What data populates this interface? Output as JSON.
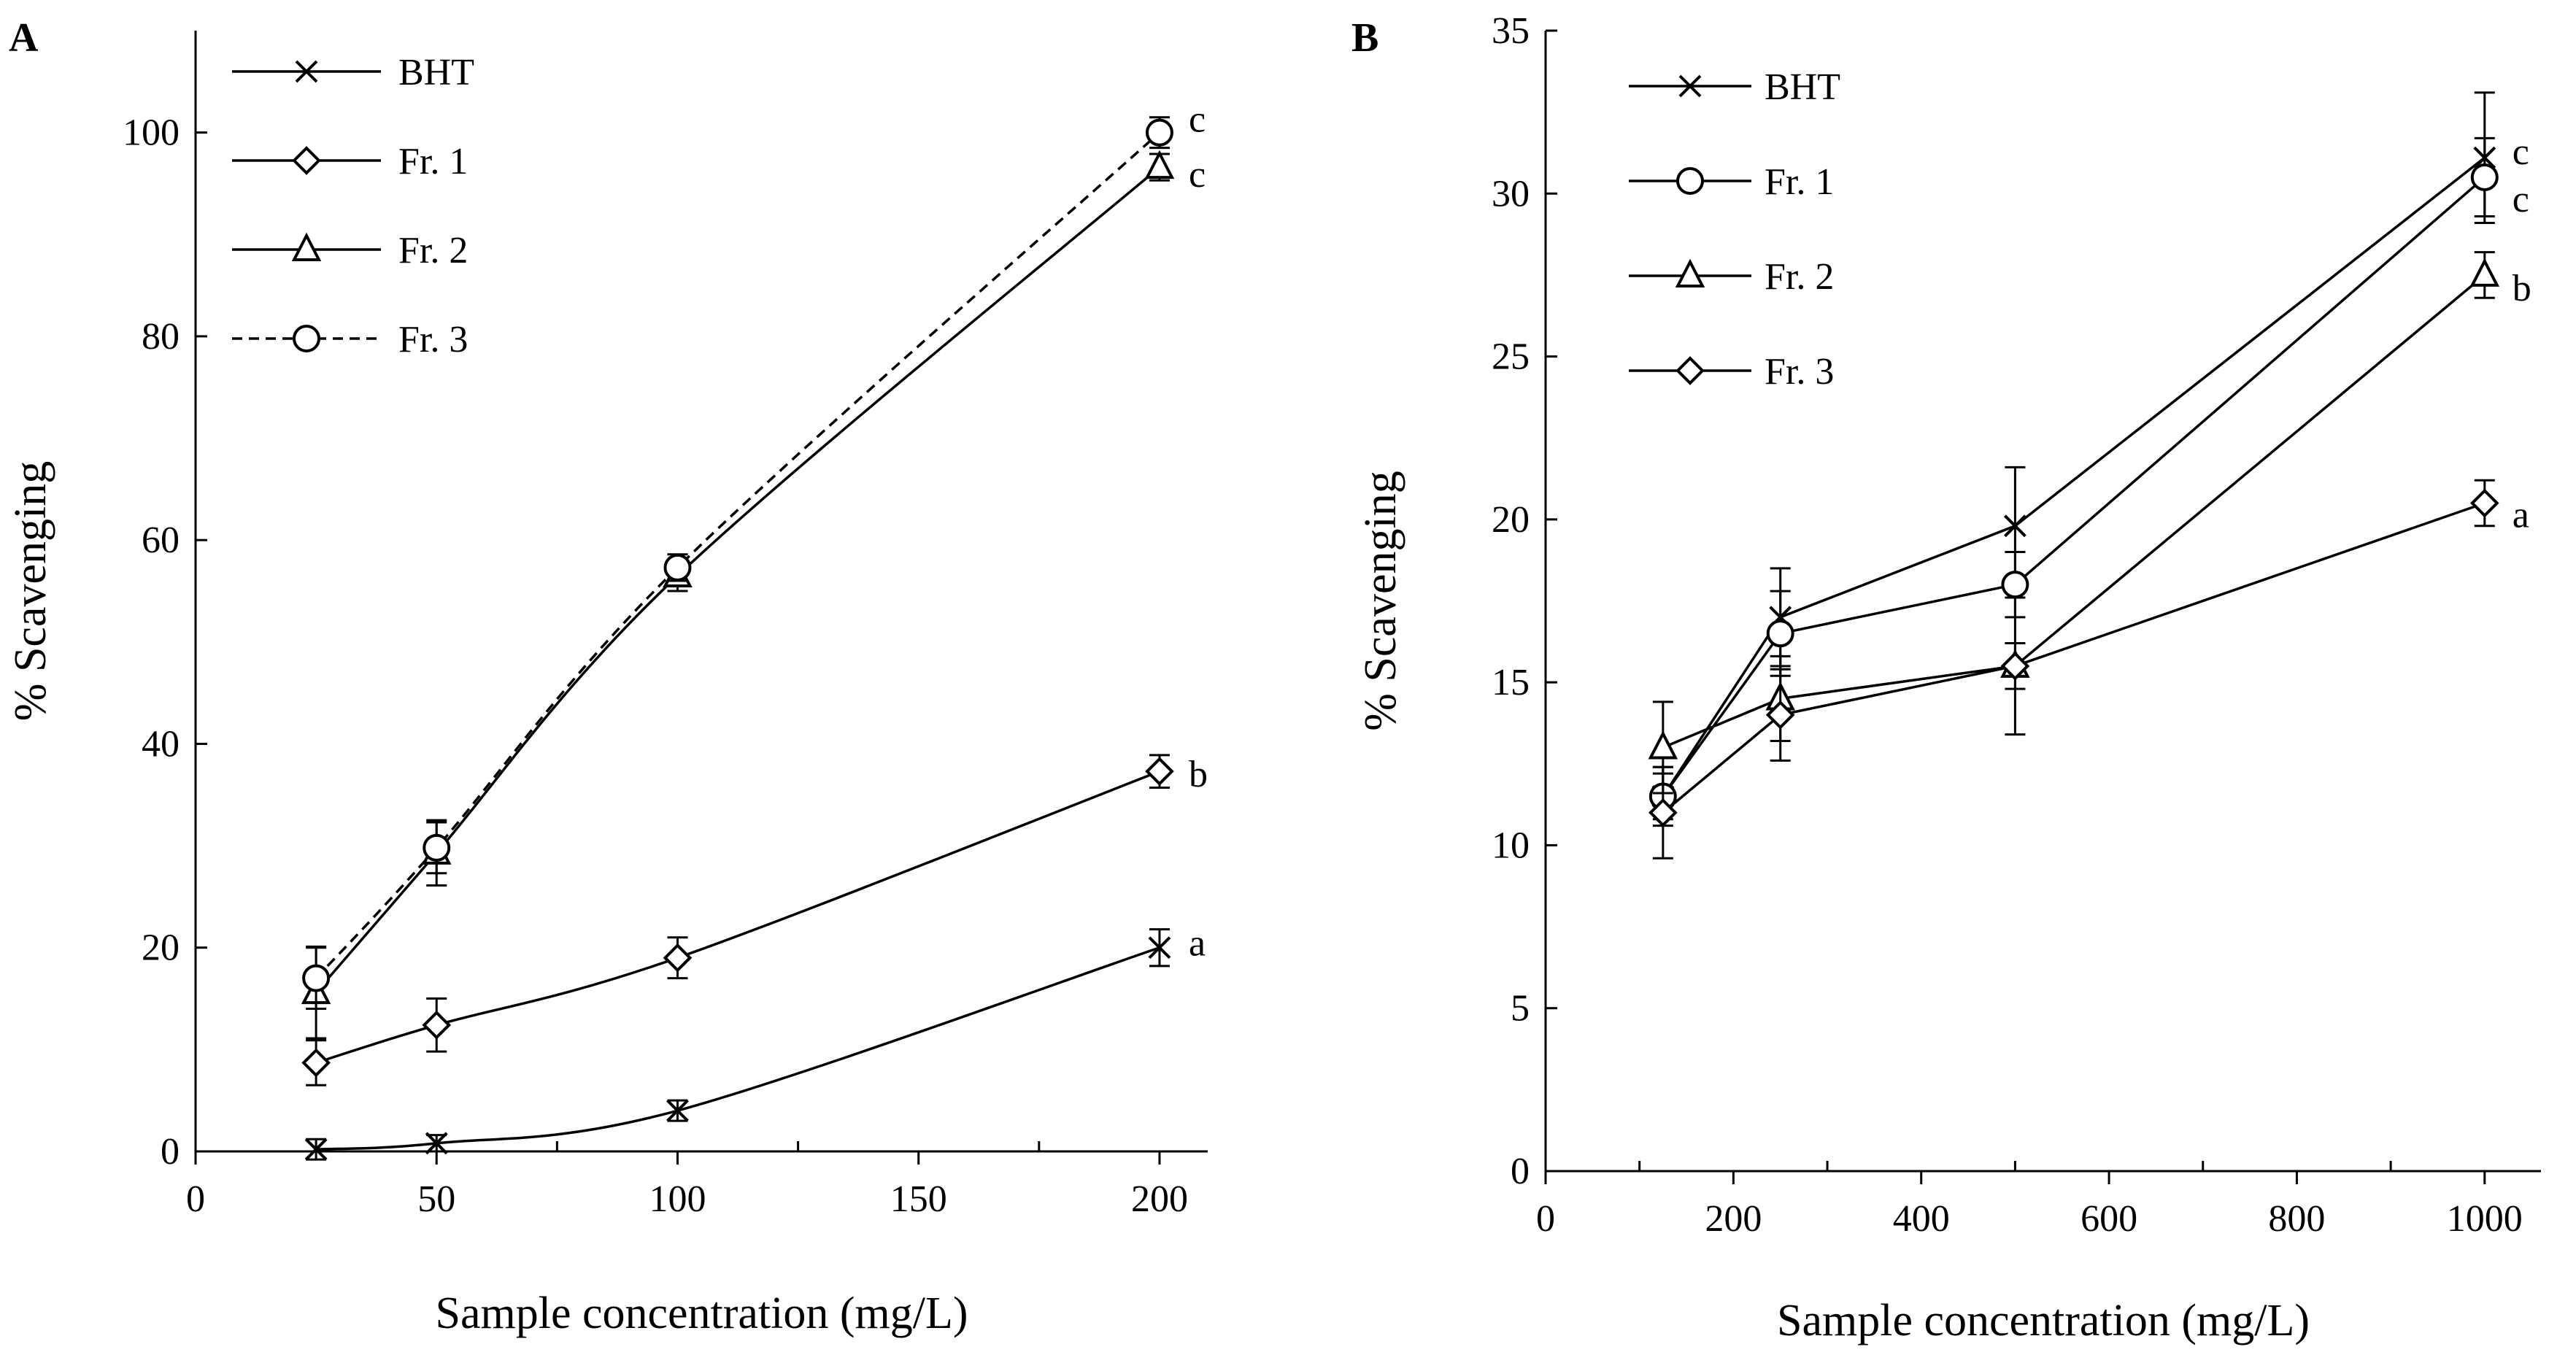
{
  "chart_data": [
    {
      "panel_label": "A",
      "type": "line",
      "xlabel": "Sample concentration (mg/L)",
      "ylabel": "% Scavenging",
      "xlim": [
        0,
        210
      ],
      "ylim": [
        0,
        110
      ],
      "xticks": [
        0,
        50,
        100,
        150,
        200
      ],
      "xtick_labels": [
        "0",
        "50",
        "100",
        "150",
        "200"
      ],
      "yticks": [
        0,
        20,
        40,
        60,
        80,
        100
      ],
      "ytick_labels": [
        "0",
        "20",
        "40",
        "60",
        "80",
        "100"
      ],
      "minor_xticks": [
        25,
        75,
        125,
        175
      ],
      "legend_position": "top-left",
      "grid": false,
      "smooth": true,
      "x": [
        25,
        50,
        100,
        200
      ],
      "series": [
        {
          "name": "BHT",
          "marker": "x",
          "dash": "solid",
          "values": [
            0.2,
            0.8,
            4,
            20
          ],
          "errors": [
            1,
            0.8,
            1,
            1.8
          ],
          "sig_letter": "a"
        },
        {
          "name": "Fr. 1",
          "marker": "diamond",
          "dash": "solid",
          "values": [
            8.7,
            12.4,
            19,
            37.3
          ],
          "errors": [
            2.2,
            2.6,
            2,
            1.6
          ],
          "sig_letter": "b"
        },
        {
          "name": "Fr. 2",
          "marker": "triangle",
          "dash": "solid",
          "values": [
            15.6,
            29.3,
            56.5,
            96.6
          ],
          "errors": [
            4.5,
            3.2,
            1.5,
            1.3
          ],
          "sig_letter": "c"
        },
        {
          "name": "Fr. 3",
          "marker": "circle",
          "dash": "dashed",
          "values": [
            17,
            29.8,
            57.3,
            100
          ],
          "errors": [
            3,
            2.5,
            1.3,
            1.5
          ],
          "sig_letter": "c"
        }
      ]
    },
    {
      "panel_label": "B",
      "type": "line",
      "xlabel": "Sample concentration (mg/L)",
      "ylabel": "% Scavenging",
      "xlim": [
        0,
        1060
      ],
      "ylim": [
        0,
        35
      ],
      "xticks": [
        0,
        200,
        400,
        600,
        800,
        1000
      ],
      "xtick_labels": [
        "0",
        "200",
        "400",
        "600",
        "800",
        "1000"
      ],
      "yticks": [
        0,
        5,
        10,
        15,
        20,
        25,
        30,
        35
      ],
      "ytick_labels": [
        "0",
        "5",
        "10",
        "15",
        "20",
        "25",
        "30",
        "35"
      ],
      "minor_xticks": [
        100,
        300,
        500,
        700,
        900
      ],
      "legend_position": "top-left",
      "grid": false,
      "smooth": false,
      "x": [
        125,
        250,
        500,
        1000
      ],
      "series": [
        {
          "name": "BHT",
          "marker": "x",
          "dash": "solid",
          "values": [
            11.5,
            17,
            19.8,
            31.1
          ],
          "errors": [
            0.9,
            1.5,
            1.8,
            2
          ],
          "sig_letter": "c"
        },
        {
          "name": "Fr. 1",
          "marker": "circle",
          "dash": "solid",
          "values": [
            11.5,
            16.5,
            18,
            30.5
          ],
          "errors": [
            0.7,
            1.3,
            1,
            1.2
          ],
          "sig_letter": "c"
        },
        {
          "name": "Fr. 2",
          "marker": "triangle",
          "dash": "solid",
          "values": [
            13,
            14.5,
            15.5,
            27.5
          ],
          "errors": [
            1.4,
            1.3,
            0.7,
            0.7
          ],
          "sig_letter": "b"
        },
        {
          "name": "Fr. 3",
          "marker": "diamond",
          "dash": "solid",
          "values": [
            11,
            14,
            15.5,
            20.5
          ],
          "errors": [
            1.4,
            1.4,
            2.1,
            0.7
          ],
          "sig_letter": "a"
        }
      ]
    }
  ]
}
